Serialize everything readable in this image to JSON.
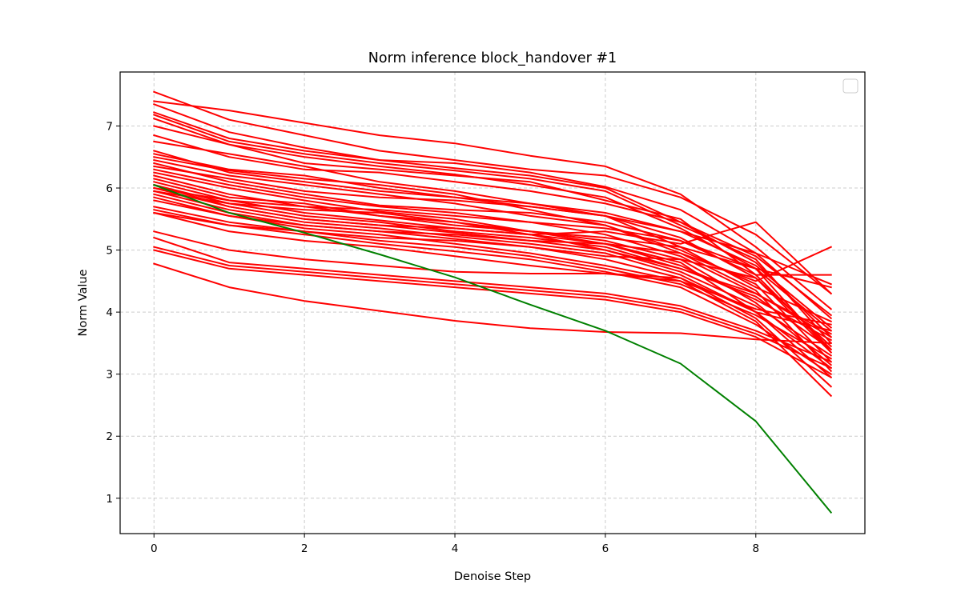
{
  "chart_data": {
    "type": "line",
    "title": "Norm inference block_handover #1",
    "xlabel": "Denoise Step",
    "ylabel": "Norm Value",
    "xlim": [
      -0.45,
      9.45
    ],
    "ylim": [
      0.43,
      7.87
    ],
    "xticks": [
      "0",
      "2",
      "4",
      "6",
      "8"
    ],
    "yticks": [
      "1",
      "2",
      "3",
      "4",
      "5",
      "6",
      "7"
    ],
    "grid": true,
    "grid_style": "dashed",
    "legend": "top-right (empty)",
    "colors": {
      "red_series": "#ff0000",
      "green_series": "#008000",
      "grid": "#cccccc"
    },
    "x": [
      0,
      1,
      2,
      3,
      4,
      5,
      6,
      7,
      8,
      9
    ],
    "series": [
      {
        "values": [
          7.55,
          7.1,
          6.85,
          6.6,
          6.45,
          6.3,
          6.2,
          5.85,
          5.25,
          4.3
        ],
        "color": "#ff0000"
      },
      {
        "values": [
          7.4,
          7.25,
          7.05,
          6.85,
          6.72,
          6.52,
          6.35,
          5.9,
          5.05,
          4.05
        ],
        "color": "#ff0000"
      },
      {
        "values": [
          7.35,
          6.9,
          6.65,
          6.45,
          6.4,
          6.25,
          6.02,
          5.65,
          4.95,
          3.9
        ],
        "color": "#ff0000"
      },
      {
        "values": [
          7.22,
          6.8,
          6.6,
          6.45,
          6.32,
          6.2,
          6.0,
          5.45,
          4.8,
          3.6
        ],
        "color": "#ff0000"
      },
      {
        "values": [
          7.18,
          6.75,
          6.55,
          6.4,
          6.28,
          6.15,
          5.95,
          5.4,
          4.85,
          3.5
        ],
        "color": "#ff0000"
      },
      {
        "values": [
          7.12,
          6.7,
          6.5,
          6.35,
          6.22,
          6.05,
          5.85,
          5.35,
          4.7,
          3.35
        ],
        "color": "#ff0000"
      },
      {
        "values": [
          7.0,
          6.7,
          6.4,
          6.3,
          6.2,
          6.1,
          5.8,
          5.5,
          4.6,
          3.4
        ],
        "color": "#ff0000"
      },
      {
        "values": [
          6.75,
          6.55,
          6.35,
          6.1,
          5.95,
          5.75,
          5.55,
          5.05,
          4.7,
          3.7
        ],
        "color": "#ff0000"
      },
      {
        "values": [
          6.6,
          6.25,
          6.1,
          5.95,
          5.85,
          5.7,
          5.55,
          5.2,
          4.55,
          3.45
        ],
        "color": "#ff0000"
      },
      {
        "values": [
          6.5,
          6.28,
          6.15,
          6.05,
          5.9,
          5.65,
          5.4,
          5.0,
          4.45,
          3.2
        ],
        "color": "#ff0000"
      },
      {
        "values": [
          6.45,
          6.2,
          6.05,
          5.9,
          5.75,
          5.55,
          5.4,
          4.95,
          4.35,
          3.05
        ],
        "color": "#ff0000"
      },
      {
        "values": [
          6.3,
          6.05,
          5.85,
          5.7,
          5.6,
          5.45,
          5.25,
          4.9,
          4.3,
          3.65
        ],
        "color": "#ff0000"
      },
      {
        "values": [
          6.25,
          6.0,
          5.8,
          5.62,
          5.5,
          5.3,
          5.1,
          4.75,
          4.2,
          3.55
        ],
        "color": "#ff0000"
      },
      {
        "values": [
          6.2,
          5.9,
          5.7,
          5.55,
          5.45,
          5.25,
          5.0,
          4.65,
          4.1,
          3.3
        ],
        "color": "#ff0000"
      },
      {
        "values": [
          6.15,
          5.85,
          5.75,
          5.55,
          5.4,
          5.3,
          5.15,
          4.85,
          4.15,
          3.15
        ],
        "color": "#ff0000"
      },
      {
        "values": [
          6.1,
          5.8,
          5.6,
          5.48,
          5.35,
          5.25,
          5.1,
          4.8,
          4.0,
          2.95
        ],
        "color": "#ff0000"
      },
      {
        "values": [
          6.05,
          5.75,
          5.55,
          5.45,
          5.3,
          5.2,
          5.05,
          4.7,
          4.25,
          3.4
        ],
        "color": "#ff0000"
      },
      {
        "values": [
          6.0,
          5.7,
          5.5,
          5.4,
          5.28,
          5.15,
          5.0,
          4.7,
          4.3,
          3.6
        ],
        "color": "#ff0000"
      },
      {
        "values": [
          5.95,
          5.65,
          5.45,
          5.35,
          5.22,
          5.1,
          4.95,
          4.6,
          4.0,
          3.1
        ],
        "color": "#ff0000"
      },
      {
        "values": [
          5.9,
          5.6,
          5.4,
          5.3,
          5.18,
          5.05,
          4.85,
          4.55,
          3.9,
          2.8
        ],
        "color": "#ff0000"
      },
      {
        "values": [
          5.8,
          5.55,
          5.35,
          5.25,
          5.1,
          4.95,
          4.75,
          4.5,
          3.85,
          2.65
        ],
        "color": "#ff0000"
      },
      {
        "values": [
          5.7,
          5.45,
          5.3,
          5.15,
          5.05,
          4.9,
          4.7,
          4.45,
          3.95,
          3.25
        ],
        "color": "#ff0000"
      },
      {
        "values": [
          5.65,
          5.4,
          5.25,
          5.1,
          4.98,
          4.85,
          4.65,
          4.4,
          3.8,
          3.0
        ],
        "color": "#ff0000"
      },
      {
        "values": [
          5.6,
          5.3,
          5.15,
          5.05,
          4.9,
          4.75,
          4.62,
          4.5,
          4.05,
          3.8
        ],
        "color": "#ff0000"
      },
      {
        "values": [
          6.55,
          6.3,
          6.2,
          6.0,
          5.85,
          5.75,
          5.6,
          5.3,
          4.95,
          4.45
        ],
        "color": "#ff0000"
      },
      {
        "values": [
          6.85,
          6.5,
          6.3,
          6.25,
          6.1,
          5.95,
          5.75,
          5.45,
          4.9,
          3.95
        ],
        "color": "#ff0000"
      },
      {
        "values": [
          6.35,
          6.15,
          5.95,
          5.85,
          5.8,
          5.7,
          5.55,
          5.3,
          4.75,
          3.75
        ],
        "color": "#ff0000"
      },
      {
        "values": [
          6.0,
          5.8,
          5.7,
          5.65,
          5.55,
          5.45,
          5.35,
          5.15,
          4.6,
          4.6
        ],
        "color": "#ff0000"
      },
      {
        "values": [
          5.85,
          5.55,
          5.4,
          5.3,
          5.25,
          5.15,
          5.1,
          4.95,
          4.5,
          5.05
        ],
        "color": "#ff0000"
      },
      {
        "values": [
          6.4,
          6.1,
          5.9,
          5.72,
          5.65,
          5.6,
          5.45,
          5.15,
          4.7,
          4.4
        ],
        "color": "#ff0000"
      },
      {
        "values": [
          5.95,
          5.75,
          5.65,
          5.6,
          5.45,
          5.3,
          5.2,
          5.05,
          4.4,
          3.85
        ],
        "color": "#ff0000"
      },
      {
        "values": [
          6.05,
          5.7,
          5.5,
          5.4,
          5.35,
          5.25,
          5.3,
          5.1,
          5.45,
          4.3
        ],
        "color": "#ff0000"
      },
      {
        "values": [
          5.6,
          5.4,
          5.3,
          5.2,
          5.15,
          5.05,
          4.9,
          4.85,
          4.55,
          3.35
        ],
        "color": "#ff0000"
      },
      {
        "values": [
          5.3,
          5.0,
          4.85,
          4.75,
          4.65,
          4.62,
          4.62,
          4.55,
          4.0,
          3.7
        ],
        "color": "#ff0000"
      },
      {
        "values": [
          5.2,
          4.8,
          4.7,
          4.6,
          4.5,
          4.4,
          4.3,
          4.1,
          3.7,
          3.2
        ],
        "color": "#ff0000"
      },
      {
        "values": [
          5.05,
          4.75,
          4.65,
          4.55,
          4.45,
          4.35,
          4.25,
          4.05,
          3.65,
          3.1
        ],
        "color": "#ff0000"
      },
      {
        "values": [
          5.0,
          4.7,
          4.6,
          4.5,
          4.4,
          4.3,
          4.2,
          4.0,
          3.6,
          2.95
        ],
        "color": "#ff0000"
      },
      {
        "values": [
          4.78,
          4.4,
          4.18,
          4.02,
          3.86,
          3.74,
          3.68,
          3.66,
          3.56,
          3.5
        ],
        "color": "#ff0000"
      },
      {
        "values": [
          6.05,
          5.6,
          5.28,
          4.93,
          4.56,
          4.12,
          3.7,
          3.17,
          2.24,
          0.77
        ],
        "color": "#008000"
      }
    ]
  }
}
